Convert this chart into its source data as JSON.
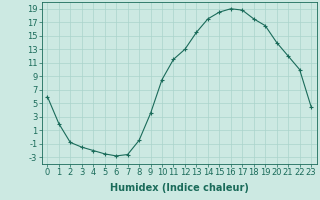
{
  "xlabel": "Humidex (Indice chaleur)",
  "ylabel": "",
  "x_values": [
    0,
    1,
    2,
    3,
    4,
    5,
    6,
    7,
    8,
    9,
    10,
    11,
    12,
    13,
    14,
    15,
    16,
    17,
    18,
    19,
    20,
    21,
    22,
    23
  ],
  "y_values": [
    6,
    2,
    -0.8,
    -1.5,
    -2.0,
    -2.5,
    -2.8,
    -2.6,
    -0.5,
    3.5,
    8.5,
    11.5,
    13.0,
    15.5,
    17.5,
    18.5,
    19.0,
    18.8,
    17.5,
    16.5,
    14.0,
    12.0,
    10.0,
    4.5
  ],
  "line_color": "#1a6b5a",
  "marker": "+",
  "markersize": 3,
  "background_color": "#cce9e2",
  "grid_color": "#aad4cc",
  "xlim": [
    -0.5,
    23.5
  ],
  "ylim": [
    -4,
    20
  ],
  "yticks": [
    -3,
    -1,
    1,
    3,
    5,
    7,
    9,
    11,
    13,
    15,
    17,
    19
  ],
  "xticks": [
    0,
    1,
    2,
    3,
    4,
    5,
    6,
    7,
    8,
    9,
    10,
    11,
    12,
    13,
    14,
    15,
    16,
    17,
    18,
    19,
    20,
    21,
    22,
    23
  ],
  "xlabel_fontsize": 7,
  "tick_fontsize": 6,
  "line_width": 0.8
}
